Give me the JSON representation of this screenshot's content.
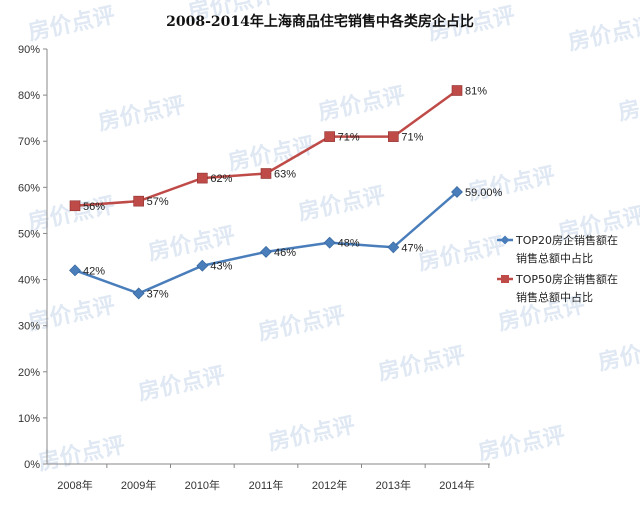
{
  "chart_data": {
    "type": "line",
    "title": "2008-2014年上海商品住宅销售中各类房企占比",
    "categories": [
      "2008年",
      "2009年",
      "2010年",
      "2011年",
      "2012年",
      "2013年",
      "2014年"
    ],
    "y_ticks": [
      "0%",
      "10%",
      "20%",
      "30%",
      "40%",
      "50%",
      "60%",
      "70%",
      "80%",
      "90%"
    ],
    "ylim": [
      0,
      90
    ],
    "grid": false,
    "legend_position": "right",
    "series": [
      {
        "name_line1": "TOP20房企销售额在",
        "name_line2": "销售总额中占比",
        "values": [
          42,
          37,
          43,
          46,
          48,
          47,
          59
        ],
        "labels": [
          "42%",
          "37%",
          "43%",
          "46%",
          "48%",
          "47%",
          "59.00%"
        ],
        "color": "#4a7ebb",
        "marker": "diamond"
      },
      {
        "name_line1": "TOP50房企销售额在",
        "name_line2": "销售总额中占比",
        "values": [
          56,
          57,
          62,
          63,
          71,
          71,
          81
        ],
        "labels": [
          "56%",
          "57%",
          "62%",
          "63%",
          "71%",
          "71%",
          "81%"
        ],
        "color": "#be4b48",
        "marker": "square"
      }
    ],
    "watermark": "房价点评"
  }
}
